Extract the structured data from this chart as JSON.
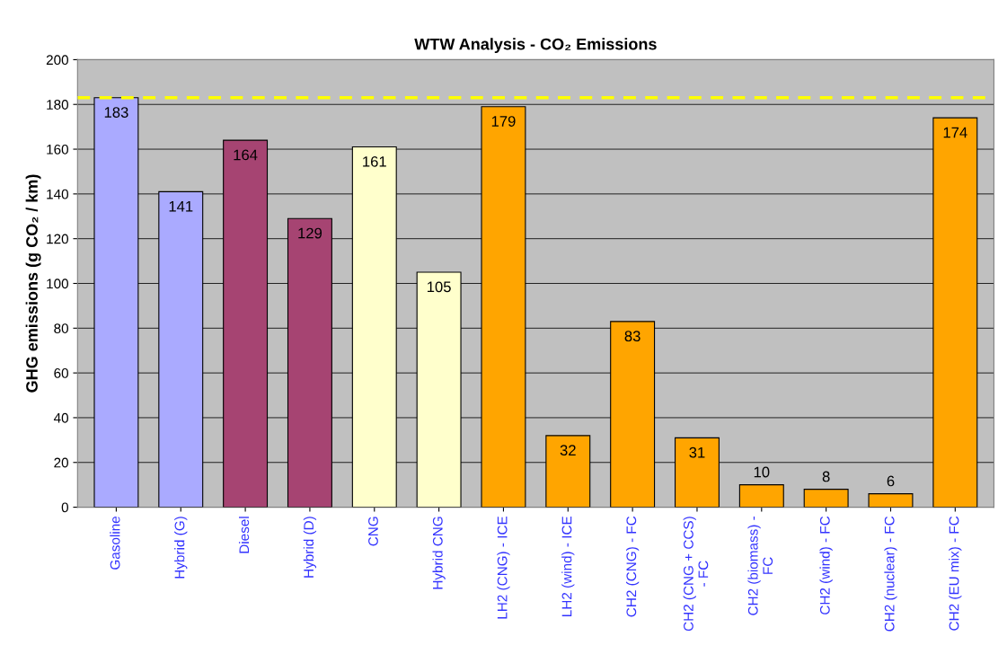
{
  "chart_data": {
    "type": "bar",
    "title": "WTW Analysis - CO₂ Emissions",
    "ylabel": "GHG emissions (g CO₂ / km)",
    "categories": [
      "Gasoline",
      "Hybrid (G)",
      "Diesel",
      "Hybrid (D)",
      "CNG",
      "Hybrid CNG",
      "LH2 (CNG) - ICE",
      "LH2 (wind) - ICE",
      "CH2 (CNG) - FC",
      "CH2 (CNG + CCS)\n- FC",
      "CH2 (biomass) -\nFC",
      "CH2 (wind) - FC",
      "CH2 (nuclear) - FC",
      "CH2 (EU mix) - FC"
    ],
    "values": [
      183,
      141,
      164,
      129,
      161,
      105,
      179,
      32,
      83,
      31,
      10,
      8,
      6,
      174
    ],
    "colors": [
      "#aaaaff",
      "#aaaaff",
      "#a64472",
      "#a64472",
      "#ffffcc",
      "#ffffcc",
      "#ffa500",
      "#ffa500",
      "#ffa500",
      "#ffa500",
      "#ffa500",
      "#ffa500",
      "#ffa500",
      "#ffa500"
    ],
    "ylim": [
      0,
      200
    ],
    "yticks": [
      0,
      20,
      40,
      60,
      80,
      100,
      120,
      140,
      160,
      180,
      200
    ],
    "grid": "y",
    "data_labels": true,
    "legend": false,
    "ref_lines": [
      {
        "axis": "y",
        "value": 183,
        "color": "#ffff00",
        "line_style": "dashed"
      }
    ]
  }
}
